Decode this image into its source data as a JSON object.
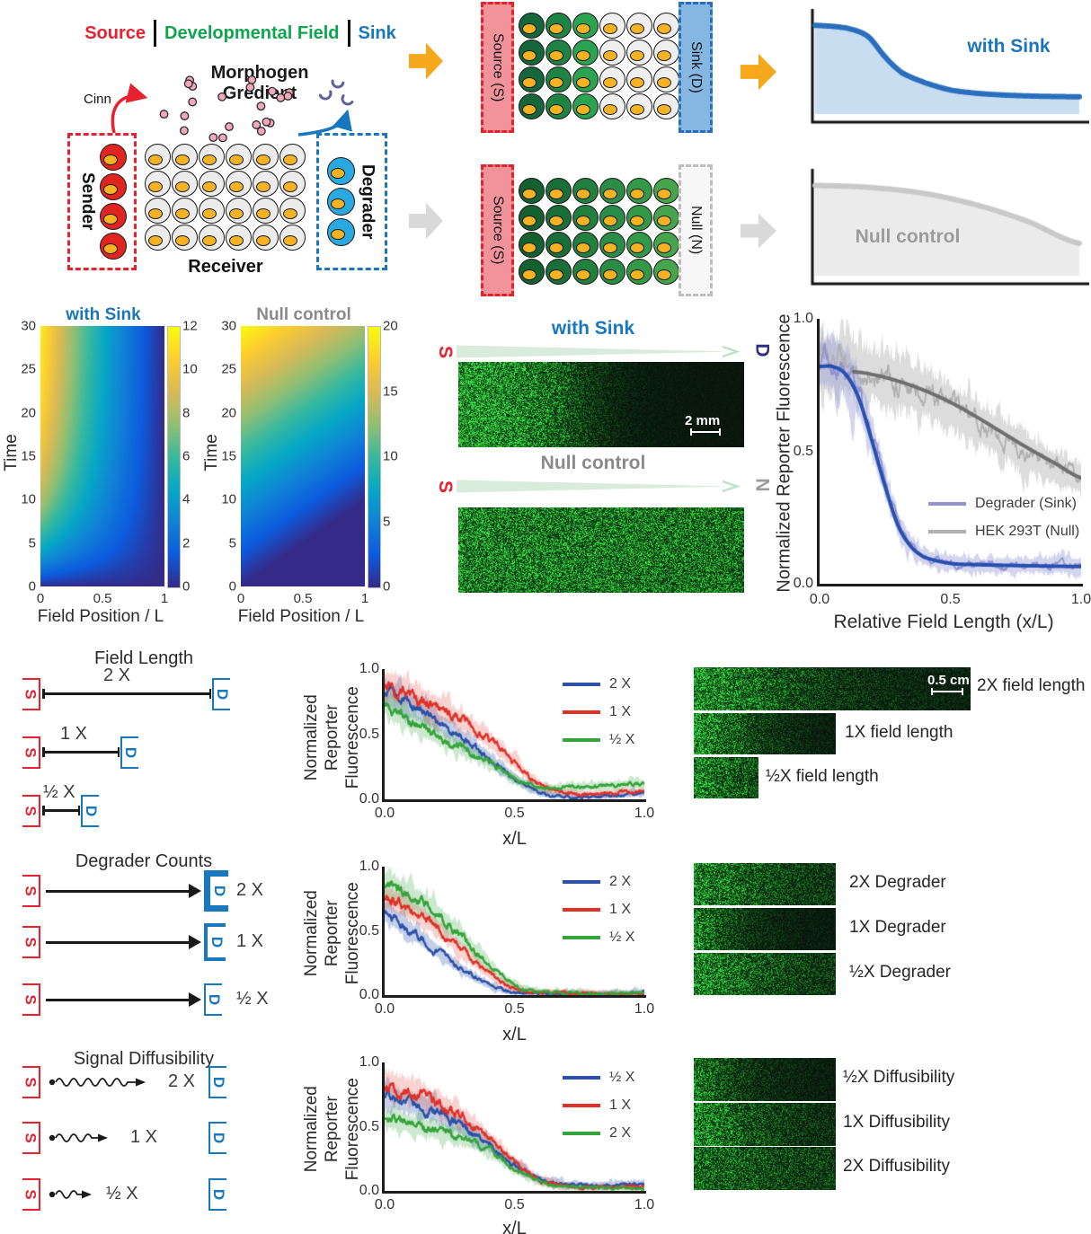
{
  "panel_a": {
    "header_source": "Source",
    "header_field": "Developmental Field",
    "header_sink": "Sink",
    "morphogen_line1": "Morphogen",
    "morphogen_line2": "Gredient",
    "cinn_label": "Cinn",
    "sender_label": "Sender",
    "receiver_label": "Receiver",
    "degrader_label": "Degrader"
  },
  "panel_b": {
    "grid1_left": "Source (S)",
    "grid1_right": "Sink (D)",
    "grid2_left": "Source (S)",
    "grid2_right": "Null (N)"
  },
  "cells": {
    "sender": {
      "count": 4,
      "color": "#e02420",
      "size": 30
    },
    "degrader": {
      "count": 3,
      "color": "#2aa9e0",
      "size": 31
    },
    "receiver": {
      "cols": 6,
      "rows": 4,
      "col_colors": [
        "#ececec",
        "#ececec",
        "#ececec",
        "#ececec",
        "#ececec",
        "#ececec"
      ],
      "size": 29
    },
    "grid1": {
      "cols": 6,
      "rows": 4,
      "col_colors": [
        "#15663a",
        "#1f8343",
        "#2aa451",
        "#efefef",
        "#efefef",
        "#efefef"
      ],
      "size": 29
    },
    "grid2": {
      "cols": 6,
      "rows": 4,
      "col_colors": [
        "#14602f",
        "#1a6e37",
        "#22803f",
        "#2a8c46",
        "#339947",
        "#45a44c"
      ],
      "size": 29
    }
  },
  "mid": {
    "title_sink": "with Sink",
    "title_null": "Null control",
    "s_label": "S",
    "d_label": "D",
    "n_label": "N",
    "scalebar": "2 mm"
  },
  "sections": {
    "field_length": {
      "title": "Field Length",
      "s_label": "S",
      "d_label": "D",
      "row_labels": [
        "2 X",
        "1 X",
        "½ X"
      ],
      "images": [
        {
          "label": "2X field length",
          "scalebar": "0.5 cm"
        },
        {
          "label": "1X field length"
        },
        {
          "label": "½X field length"
        }
      ]
    },
    "degrader_counts": {
      "title": "Degrader Counts",
      "s_label": "S",
      "d_label": "D",
      "row_labels": [
        "2 X",
        "1 X",
        "½ X"
      ],
      "images": [
        {
          "label": "2X Degrader"
        },
        {
          "label": "1X Degrader"
        },
        {
          "label": "½X Degrader"
        }
      ]
    },
    "signal_diffusibility": {
      "title": "Signal Diffusibility",
      "s_label": "S",
      "d_label": "D",
      "row_labels": [
        "2 X",
        "1 X",
        "½ X"
      ],
      "images": [
        {
          "label": "½X Diffusibility"
        },
        {
          "label": "1X Diffusibility"
        },
        {
          "label": "2X Diffusibility"
        }
      ]
    }
  },
  "fluor": {
    "fl_sink": {
      "type": "sig",
      "base": 0.8,
      "mid": 0.32,
      "wid": 0.1,
      "floor": 0.02,
      "seed": 61
    },
    "fl_null": {
      "type": "lin",
      "base": 0.55,
      "slope": 0.1,
      "floor": 0,
      "edge": true,
      "seed": 62
    },
    "fl_2x_field": {
      "type": "exp",
      "base": 0.72,
      "tau": 0.3,
      "floor": 0.05,
      "grid": true,
      "seed": 63
    },
    "fl_1x_field": {
      "type": "exp",
      "base": 0.78,
      "tau": 0.33,
      "floor": 0.02,
      "seed": 64
    },
    "fl_half_field": {
      "type": "exp",
      "base": 0.55,
      "tau": 0.9,
      "floor": 0.08,
      "grid": true,
      "seed": 65
    },
    "fl_2x_deg": {
      "type": "exp",
      "base": 0.5,
      "tau": 0.4,
      "floor": 0.13,
      "seed": 66
    },
    "fl_1x_deg": {
      "type": "exp",
      "base": 0.58,
      "tau": 0.24,
      "floor": 0.04,
      "seed": 67
    },
    "fl_half_deg": {
      "type": "exp",
      "base": 0.55,
      "tau": 0.5,
      "floor": 0.1,
      "seed": 68
    },
    "fl_half_diff": {
      "type": "exp",
      "base": 0.5,
      "tau": 0.28,
      "floor": 0.04,
      "seed": 69
    },
    "fl_1x_diff": {
      "type": "exp",
      "base": 0.58,
      "tau": 0.45,
      "floor": 0.06,
      "seed": 70
    },
    "fl_2x_diff": {
      "type": "exp",
      "base": 0.35,
      "tau": 0.85,
      "floor": 0.08,
      "grid": true,
      "seed": 71
    }
  },
  "chart_data": [
    {
      "id": "concept_sink",
      "type": "line",
      "label": "with Sink",
      "label_color": "#1b75bb",
      "line_color": "#2a6fbd",
      "fill_color": "#c9ddf1",
      "x": [
        0,
        0.12,
        0.2,
        0.27,
        0.33,
        0.42,
        0.52,
        0.65,
        0.8,
        1
      ],
      "y": [
        0.88,
        0.85,
        0.76,
        0.52,
        0.36,
        0.25,
        0.17,
        0.13,
        0.11,
        0.1
      ]
    },
    {
      "id": "concept_null",
      "type": "line",
      "label": "Null control",
      "label_color": "#9b9b9b",
      "line_color": "#c9c9c9",
      "fill_color": "#ebebeb",
      "x": [
        0,
        0.2,
        0.4,
        0.6,
        0.8,
        1
      ],
      "y": [
        0.88,
        0.86,
        0.8,
        0.68,
        0.5,
        0.26
      ]
    },
    {
      "id": "heatmap_sink",
      "type": "heatmap",
      "title": "with Sink",
      "title_color": "#1b75bb",
      "xlabel": "Field Position / L",
      "ylabel": "Time",
      "xticks": [
        "0",
        "0.5",
        "1"
      ],
      "yticks": [
        "30",
        "25",
        "20",
        "15",
        "10",
        "5",
        "0"
      ],
      "colorbar_ticks": [
        "12",
        "10",
        "8",
        "6",
        "4",
        "2",
        "0"
      ],
      "xlim": [
        0,
        1
      ],
      "ylim": [
        0,
        30
      ],
      "vmax": 12.5,
      "profile": "sink"
    },
    {
      "id": "heatmap_null",
      "type": "heatmap",
      "title": "Null control",
      "title_color": "#8a8a8a",
      "xlabel": "Field Position / L",
      "ylabel": "Time",
      "xticks": [
        "0",
        "0.5",
        "1"
      ],
      "yticks": [
        "30",
        "25",
        "20",
        "15",
        "10",
        "5",
        "0"
      ],
      "colorbar_ticks": [
        "20",
        "15",
        "10",
        "5",
        "0"
      ],
      "xlim": [
        0,
        1
      ],
      "ylim": [
        0,
        30
      ],
      "vmax": 20,
      "profile": "null"
    },
    {
      "id": "main",
      "type": "line",
      "xlabel": "Relative Field Length (x/L)",
      "ylabel": "Normalized Reporter Fluorescence",
      "xticks": [
        "0.0",
        "0.5",
        "1.0"
      ],
      "yticks": [
        "1.0",
        "0.5",
        "0.0"
      ],
      "xlim": [
        0,
        1
      ],
      "ylim": [
        0,
        1
      ],
      "legend_order": [
        1,
        0
      ],
      "series": [
        {
          "name": "HEK 293T (Null)",
          "color": "#b0b0b0",
          "band": "rgba(178,178,178,0.45)",
          "fit_color": "#6f6f6f",
          "seed": 23,
          "x": [
            0,
            0.1,
            0.2,
            0.3,
            0.4,
            0.5,
            0.6,
            0.7,
            0.8,
            0.9,
            1
          ],
          "y": [
            0.84,
            0.82,
            0.79,
            0.76,
            0.72,
            0.67,
            0.61,
            0.55,
            0.49,
            0.44,
            0.4
          ],
          "fit_x": [
            0.13,
            0.2,
            0.3,
            0.4,
            0.5,
            0.6,
            0.7,
            0.8,
            0.9,
            1
          ],
          "fit_y": [
            0.8,
            0.79,
            0.765,
            0.73,
            0.685,
            0.63,
            0.57,
            0.51,
            0.455,
            0.4
          ]
        },
        {
          "name": "Degrader (Sink)",
          "color": "#9193d2",
          "band": "rgba(145,148,210,0.40)",
          "fit_color": "#2750ae",
          "seed": 11,
          "x": [
            0,
            0.05,
            0.1,
            0.15,
            0.2,
            0.25,
            0.3,
            0.35,
            0.4,
            0.5,
            0.6,
            0.8,
            1
          ],
          "y": [
            0.84,
            0.83,
            0.8,
            0.71,
            0.55,
            0.38,
            0.23,
            0.15,
            0.1,
            0.08,
            0.07,
            0.07,
            0.07
          ],
          "fit_x": [
            0,
            0.05,
            0.1,
            0.15,
            0.2,
            0.25,
            0.3,
            0.35,
            0.4,
            0.5,
            0.6,
            0.8,
            1
          ],
          "fit_y": [
            0.82,
            0.82,
            0.79,
            0.7,
            0.54,
            0.37,
            0.22,
            0.14,
            0.1,
            0.077,
            0.072,
            0.068,
            0.065
          ]
        }
      ]
    },
    {
      "id": "field_length",
      "type": "line",
      "xlabel": "x/L",
      "ylabel": "Normalized\nReporter\nFluorescence",
      "xticks": [
        "0.0",
        "0.5",
        "1.0"
      ],
      "yticks": [
        "1.0",
        "0.5",
        "0.0"
      ],
      "xlim": [
        0,
        1
      ],
      "ylim": [
        0,
        1
      ],
      "series": [
        {
          "name": "2 X",
          "color": "#2b52a8",
          "band": "rgba(43,82,168,0.28)",
          "seed": 31,
          "y": [
            0.82,
            0.72,
            0.6,
            0.47,
            0.32,
            0.16,
            0.05,
            0.02,
            0.02,
            0.03,
            0.05
          ]
        },
        {
          "name": "1 X",
          "color": "#e03127",
          "band": "rgba(224,49,39,0.22)",
          "seed": 32,
          "y": [
            0.88,
            0.81,
            0.71,
            0.6,
            0.46,
            0.28,
            0.11,
            0.05,
            0.04,
            0.05,
            0.06
          ]
        },
        {
          "name": "½ X",
          "color": "#35a43a",
          "band": "rgba(53,164,58,0.25)",
          "seed": 33,
          "y": [
            0.74,
            0.6,
            0.49,
            0.39,
            0.29,
            0.16,
            0.09,
            0.09,
            0.1,
            0.11,
            0.12
          ]
        }
      ]
    },
    {
      "id": "degrader_counts",
      "type": "line",
      "xlabel": "x/L",
      "ylabel": "Normalized\nReporter\nFluorescence",
      "xticks": [
        "0.0",
        "0.5",
        "1.0"
      ],
      "yticks": [
        "1.0",
        "0.5",
        "0.0"
      ],
      "xlim": [
        0,
        1
      ],
      "ylim": [
        0,
        1
      ],
      "series": [
        {
          "name": "2 X",
          "color": "#2b52a8",
          "band": "rgba(43,82,168,0.28)",
          "seed": 41,
          "y": [
            0.64,
            0.5,
            0.35,
            0.2,
            0.08,
            0.02,
            0.01,
            0.01,
            0.01,
            0.01,
            0.02
          ]
        },
        {
          "name": "1 X",
          "color": "#e03127",
          "band": "rgba(224,49,39,0.22)",
          "seed": 42,
          "y": [
            0.76,
            0.66,
            0.52,
            0.35,
            0.17,
            0.05,
            0.02,
            0.01,
            0.01,
            0.01,
            0.01
          ]
        },
        {
          "name": "½ X",
          "color": "#35a43a",
          "band": "rgba(53,164,58,0.25)",
          "seed": 43,
          "y": [
            0.86,
            0.77,
            0.63,
            0.45,
            0.24,
            0.08,
            0.03,
            0.02,
            0.01,
            0.01,
            0.01
          ]
        }
      ]
    },
    {
      "id": "signal_diffusibility",
      "type": "line",
      "xlabel": "x/L",
      "ylabel": "Normalized\nReporter\nFluorescence",
      "xticks": [
        "0.0",
        "0.5",
        "1.0"
      ],
      "yticks": [
        "1.0",
        "0.5",
        "0.0"
      ],
      "xlim": [
        0,
        1
      ],
      "ylim": [
        0,
        1
      ],
      "series": [
        {
          "name": "½ X",
          "color": "#2b52a8",
          "band": "rgba(43,82,168,0.28)",
          "seed": 51,
          "y": [
            0.73,
            0.69,
            0.61,
            0.5,
            0.36,
            0.2,
            0.09,
            0.05,
            0.04,
            0.05,
            0.06
          ]
        },
        {
          "name": "1 X",
          "color": "#e03127",
          "band": "rgba(224,49,39,0.22)",
          "seed": 52,
          "y": [
            0.83,
            0.77,
            0.69,
            0.57,
            0.41,
            0.22,
            0.08,
            0.04,
            0.03,
            0.03,
            0.03
          ]
        },
        {
          "name": "2 X",
          "color": "#35a43a",
          "band": "rgba(53,164,58,0.25)",
          "seed": 53,
          "y": [
            0.56,
            0.52,
            0.47,
            0.41,
            0.32,
            0.18,
            0.07,
            0.03,
            0.02,
            0.02,
            0.02
          ]
        }
      ]
    }
  ]
}
